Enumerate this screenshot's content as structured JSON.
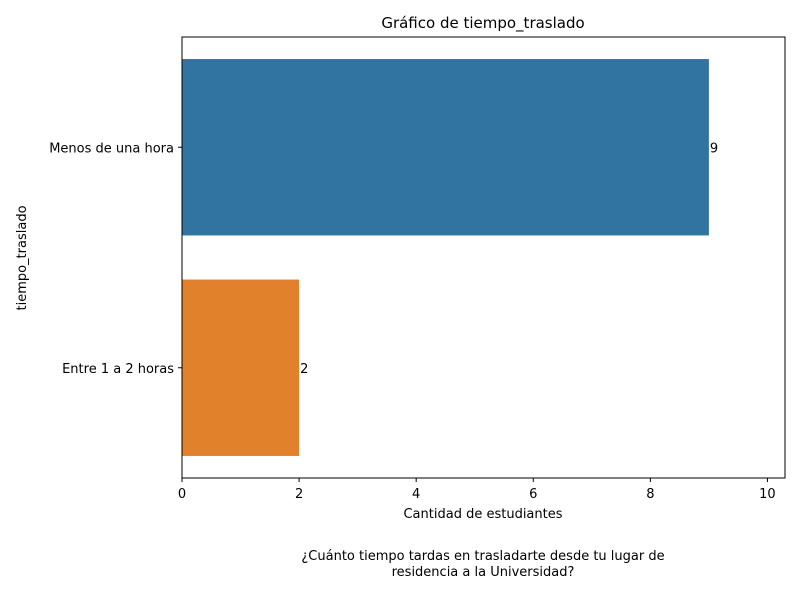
{
  "chart_data": {
    "type": "bar",
    "orientation": "horizontal",
    "title": "Gráfico de tiempo_traslado",
    "xlabel": "Cantidad de estudiantes",
    "ylabel": "tiempo_traslado",
    "categories": [
      "Menos de una hora",
      "Entre 1 a 2 horas"
    ],
    "values": [
      9,
      2
    ],
    "colors": [
      "#3274a1",
      "#e1812c"
    ],
    "xlim": [
      0,
      10.3
    ],
    "xticks": [
      0,
      2,
      4,
      6,
      8,
      10
    ],
    "grid": false,
    "data_labels": true
  },
  "caption": {
    "line1": "¿Cuánto tiempo tardas en trasladarte desde tu lugar de",
    "line2": "residencia a la Universidad?"
  }
}
